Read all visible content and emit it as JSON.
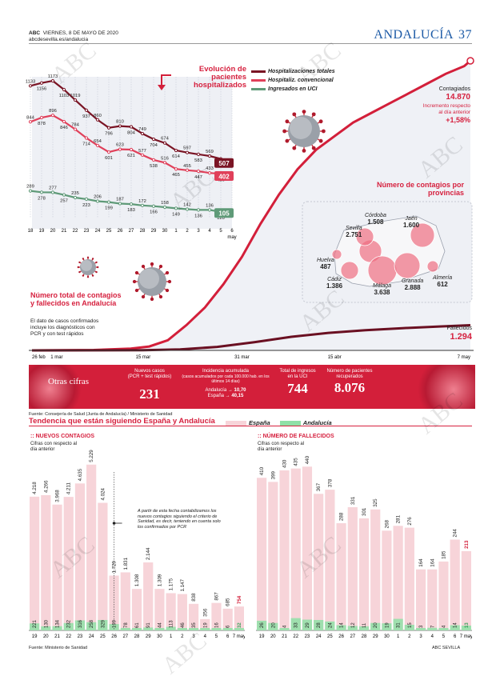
{
  "header": {
    "newspaper": "ABC",
    "date": "VIERNES, 8 DE MAYO DE 2020",
    "web": "abcdesevilla.es/andalucia",
    "section": "ANDALUCÍA",
    "page": "37"
  },
  "watermark": "ABC",
  "hosp": {
    "title": "Evolución de pacientes hospitalizados",
    "legend": [
      {
        "name": "Hospitalizaciones totales",
        "color": "#7a1424"
      },
      {
        "name": "Hospitaliz. convencional",
        "color": "#e0405a"
      },
      {
        "name": "Ingresados en UCI",
        "color": "#5f9a78"
      }
    ],
    "ticks": [
      "18",
      "19",
      "20",
      "21",
      "22",
      "23",
      "24",
      "25",
      "26",
      "27",
      "28",
      "29",
      "30",
      "1",
      "2",
      "3",
      "4",
      "5",
      "6"
    ],
    "tick_month": "may",
    "total": [
      1133,
      1156,
      1173,
      1103,
      1019,
      937,
      860,
      796,
      810,
      804,
      749,
      704,
      674,
      614,
      597,
      583,
      569,
      546,
      507
    ],
    "conv": [
      844,
      878,
      896,
      846,
      784,
      714,
      654,
      601,
      623,
      621,
      577,
      538,
      516,
      465,
      455,
      447,
      433,
      426,
      402
    ],
    "uci": [
      289,
      278,
      277,
      257,
      235,
      223,
      206,
      199,
      187,
      183,
      172,
      166,
      158,
      149,
      142,
      136,
      136,
      120,
      105
    ],
    "end_total": "507",
    "end_conv": "402",
    "end_uci": "105"
  },
  "cum": {
    "x_labels": [
      "26 feb",
      "1 mar",
      "15 mar",
      "31 mar",
      "15 abr",
      "7 may"
    ],
    "contagiados_label": "Contagiados",
    "contagiados_value": "14.870",
    "incremento_label": "Incremento respecto al día anterior",
    "incremento_value": "+1,58%",
    "fallecidos_label": "Fallecidos",
    "fallecidos_value": "1.294",
    "title": "Número total de contagios y fallecidos en Andalucía",
    "note": "El dato de casos confirmados incluye los diagnósticos con PCR y con test rápidos"
  },
  "provinces": {
    "title": "Número de contagios por provincias",
    "items": [
      {
        "name": "Córdoba",
        "value": "1.508"
      },
      {
        "name": "Jaén",
        "value": "1.600"
      },
      {
        "name": "Sevilla",
        "value": "2.751"
      },
      {
        "name": "Huelva",
        "value": "487"
      },
      {
        "name": "Cádiz",
        "value": "1.386"
      },
      {
        "name": "Málaga",
        "value": "3.638"
      },
      {
        "name": "Granada",
        "value": "2.888"
      },
      {
        "name": "Almería",
        "value": "612"
      }
    ]
  },
  "band": {
    "title": "Otras cifras",
    "nuevos_label": "Nuevos casos",
    "nuevos_sub": "(PCR + test rápidos)",
    "nuevos_value": "231",
    "ia_label": "Incidencia acumulada",
    "ia_sub": "(casos acumulados por cada 100.000 hab. en los últimos 14 días)",
    "ia_and_label": "Andalucía",
    "ia_and_value": "10,70",
    "ia_esp_label": "España",
    "ia_esp_value": "40,15",
    "uci_label": "Total de ingresos en la UCI",
    "uci_value": "744",
    "rec_label": "Número de pacientes recuperados",
    "rec_value": "8.076"
  },
  "source_top": "Fuente: Consejería de Salud (Junta de Andalucía) / Ministerio de Sanidad",
  "trend": {
    "title": "Tendencia que están siguiendo España y Andalucía",
    "legend_es": "España",
    "legend_and": "Andalucía",
    "color_es": "#f7d4d9",
    "color_and": "#8fe0a6"
  },
  "chart_data": [
    {
      "type": "bar",
      "title": "NUEVOS CONTAGIOS",
      "subtitle": "Cifras con respecto al día anterior",
      "categories": [
        "19",
        "20",
        "21",
        "22",
        "23",
        "24",
        "25",
        "26",
        "27",
        "28",
        "29",
        "30",
        "1",
        "2",
        "3",
        "4",
        "5",
        "6",
        "7 may"
      ],
      "series": [
        {
          "name": "España",
          "values": [
            4218,
            4266,
            3968,
            4211,
            4635,
            5229,
            4024,
            1729,
            1831,
            1308,
            2144,
            1309,
            1175,
            1147,
            838,
            356,
            867,
            685,
            754
          ]
        },
        {
          "name": "Andalucía",
          "values": [
            221,
            130,
            134,
            232,
            316,
            258,
            329,
            199,
            78,
            61,
            91,
            44,
            113,
            46,
            35,
            19,
            16,
            6,
            32
          ]
        }
      ],
      "annotation": "A partir de esta fecha contabilizamos los nuevos contagios siguiendo el criterio de Sanidad, es decir, teniendo en cuenta solo los confirmados por PCR"
    },
    {
      "type": "bar",
      "title": "NÚMERO DE FALLECIDOS",
      "subtitle": "Cifras con respecto al día anterior",
      "categories": [
        "19",
        "20",
        "21",
        "22",
        "23",
        "24",
        "25",
        "26",
        "27",
        "28",
        "29",
        "30",
        "1",
        "2",
        "3",
        "4",
        "5",
        "6",
        "7 may"
      ],
      "series": [
        {
          "name": "España",
          "values": [
            410,
            399,
            430,
            435,
            440,
            367,
            378,
            288,
            331,
            301,
            325,
            268,
            281,
            276,
            164,
            164,
            185,
            244,
            213
          ]
        },
        {
          "name": "Andalucía",
          "values": [
            26,
            20,
            4,
            33,
            29,
            28,
            24,
            14,
            12,
            11,
            20,
            19,
            31,
            15,
            3,
            7,
            4,
            14,
            13
          ]
        }
      ]
    }
  ],
  "source_bottom": "Fuente: Ministerio de Sanidad",
  "credit": "ABC SEVILLA"
}
